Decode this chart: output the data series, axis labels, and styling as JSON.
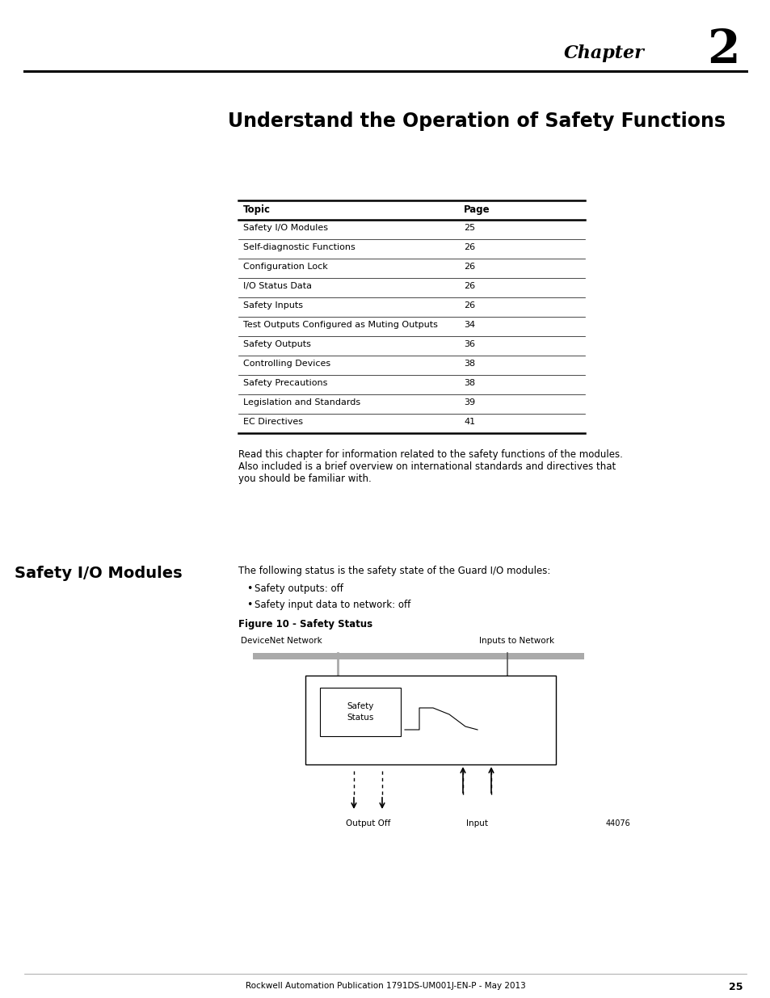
{
  "chapter_label": "Chapter",
  "chapter_number": "2",
  "main_title": "Understand the Operation of Safety Functions",
  "table_topics": [
    "Safety I/O Modules",
    "Self-diagnostic Functions",
    "Configuration Lock",
    "I/O Status Data",
    "Safety Inputs",
    "Test Outputs Configured as Muting Outputs",
    "Safety Outputs",
    "Controlling Devices",
    "Safety Precautions",
    "Legislation and Standards",
    "EC Directives"
  ],
  "table_pages": [
    "25",
    "26",
    "26",
    "26",
    "26",
    "34",
    "36",
    "38",
    "38",
    "39",
    "41"
  ],
  "body_text1": "Read this chapter for information related to the safety functions of the modules.",
  "body_text2": "Also included is a brief overview on international standards and directives that",
  "body_text3": "you should be familiar with.",
  "section_title": "Safety I/O Modules",
  "section_body": "The following status is the safety state of the Guard I/O modules:",
  "bullet1": "Safety outputs: off",
  "bullet2": "Safety input data to network: off",
  "figure_label": "Figure 10 - Safety Status",
  "fig_label_devicenet": "DeviceNet Network",
  "fig_label_inputs": "Inputs to Network",
  "fig_label_output": "Output Off",
  "fig_label_input": "Input",
  "fig_label_safety": "Safety\nStatus",
  "fig_number": "44076",
  "footer_text": "Rockwell Automation Publication 1791DS-UM001J-EN-P - May 2013",
  "footer_page": "25",
  "bg_color": "#ffffff",
  "text_color": "#000000",
  "gray_color": "#999999"
}
